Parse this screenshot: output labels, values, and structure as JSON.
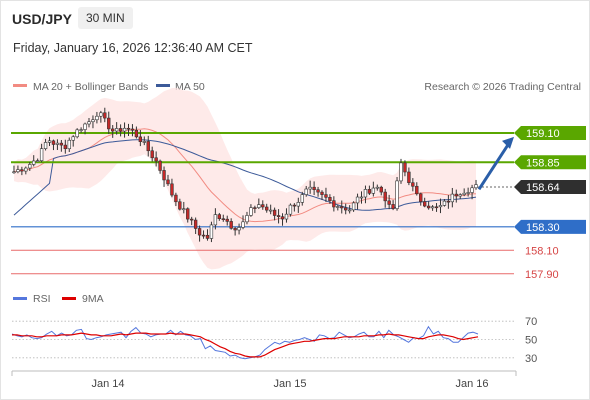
{
  "header": {
    "symbol": "USD/JPY",
    "timeframe": "30 MIN",
    "datetime": "Friday, January 16, 2026 12:36:40 AM CET"
  },
  "legend": {
    "bollinger": "MA 20 + Bollinger Bands",
    "ma50": "MA 50",
    "credit": "Research © 2026 Trading Central",
    "rsi": "RSI",
    "rsi_ma": "9MA"
  },
  "colors": {
    "bollinger": "#f28b82",
    "ma50": "#3c5a99",
    "resistance": "#5aa700",
    "support": "#2f6ec8",
    "support_weak": "#e86a6a",
    "price_tag": "#2f2f2f",
    "arrow": "#2a5ea8",
    "rsi": "#5577dd",
    "rsi_ma": "#dd0000"
  },
  "chart_data": {
    "type": "candlestick",
    "price_axis": {
      "ylim": [
        157.77,
        159.33
      ]
    },
    "x_ticks": [
      "Jan 14",
      "Jan 15",
      "Jan 16"
    ],
    "levels": [
      {
        "value": 159.1,
        "label": "159.10",
        "kind": "resistance"
      },
      {
        "value": 158.85,
        "label": "158.85",
        "kind": "resistance"
      },
      {
        "value": 158.64,
        "label": "158.64",
        "kind": "last-price"
      },
      {
        "value": 158.3,
        "label": "158.30",
        "kind": "support"
      },
      {
        "value": 158.1,
        "label": "158.10",
        "kind": "support-weak"
      },
      {
        "value": 157.9,
        "label": "157.90",
        "kind": "support-weak"
      }
    ],
    "close_path": [
      158.77,
      158.8,
      158.84,
      158.9,
      159.05,
      159.0,
      158.98,
      159.08,
      159.15,
      159.2,
      159.28,
      159.18,
      159.1,
      159.15,
      159.12,
      159.05,
      158.95,
      158.85,
      158.7,
      158.55,
      158.45,
      158.35,
      158.25,
      158.2,
      158.4,
      158.38,
      158.3,
      158.3,
      158.42,
      158.5,
      158.45,
      158.4,
      158.38,
      158.48,
      158.53,
      158.62,
      158.58,
      158.55,
      158.5,
      158.47,
      158.45,
      158.55,
      158.6,
      158.65,
      158.58,
      158.4,
      158.85,
      158.7,
      158.55,
      158.5,
      158.45,
      158.48,
      158.55,
      158.6,
      158.62,
      158.64
    ],
    "rsi": {
      "levels": [
        70,
        50,
        30
      ],
      "ylim": [
        20,
        80
      ],
      "values": [
        56,
        54,
        53,
        55,
        52,
        51,
        52,
        56,
        59,
        54,
        57,
        54,
        55,
        60,
        61,
        51,
        50,
        52,
        53,
        55,
        56,
        57,
        58,
        52,
        59,
        63,
        57,
        56,
        53,
        55,
        56,
        56,
        60,
        55,
        59,
        55,
        54,
        50,
        51,
        40,
        43,
        38,
        37,
        36,
        32,
        33,
        30,
        29,
        30,
        31,
        33,
        39,
        43,
        47,
        45,
        48,
        47,
        49,
        50,
        52,
        50,
        48,
        55,
        54,
        51,
        52,
        58,
        55,
        52,
        53,
        56,
        58,
        53,
        53,
        59,
        52,
        60,
        55,
        53,
        50,
        47,
        52,
        51,
        54,
        64,
        56,
        59,
        52,
        51,
        47,
        47,
        52,
        57,
        58,
        56
      ],
      "ma_values": [
        55,
        55,
        54,
        54,
        54,
        53,
        53,
        54,
        54,
        54,
        55,
        55,
        55,
        56,
        57,
        56,
        55,
        55,
        54,
        54,
        54,
        55,
        56,
        55,
        56,
        57,
        57,
        57,
        56,
        56,
        56,
        56,
        57,
        56,
        56,
        56,
        55,
        54,
        53,
        50,
        48,
        45,
        42,
        40,
        37,
        35,
        34,
        32,
        31,
        31,
        31,
        33,
        36,
        39,
        41,
        43,
        45,
        46,
        47,
        48,
        48,
        49,
        50,
        51,
        51,
        51,
        52,
        53,
        53,
        53,
        53,
        54,
        54,
        54,
        55,
        55,
        56,
        55,
        55,
        54,
        53,
        52,
        51,
        51,
        53,
        54,
        55,
        55,
        54,
        53,
        51,
        50,
        51,
        52,
        53
      ]
    }
  }
}
